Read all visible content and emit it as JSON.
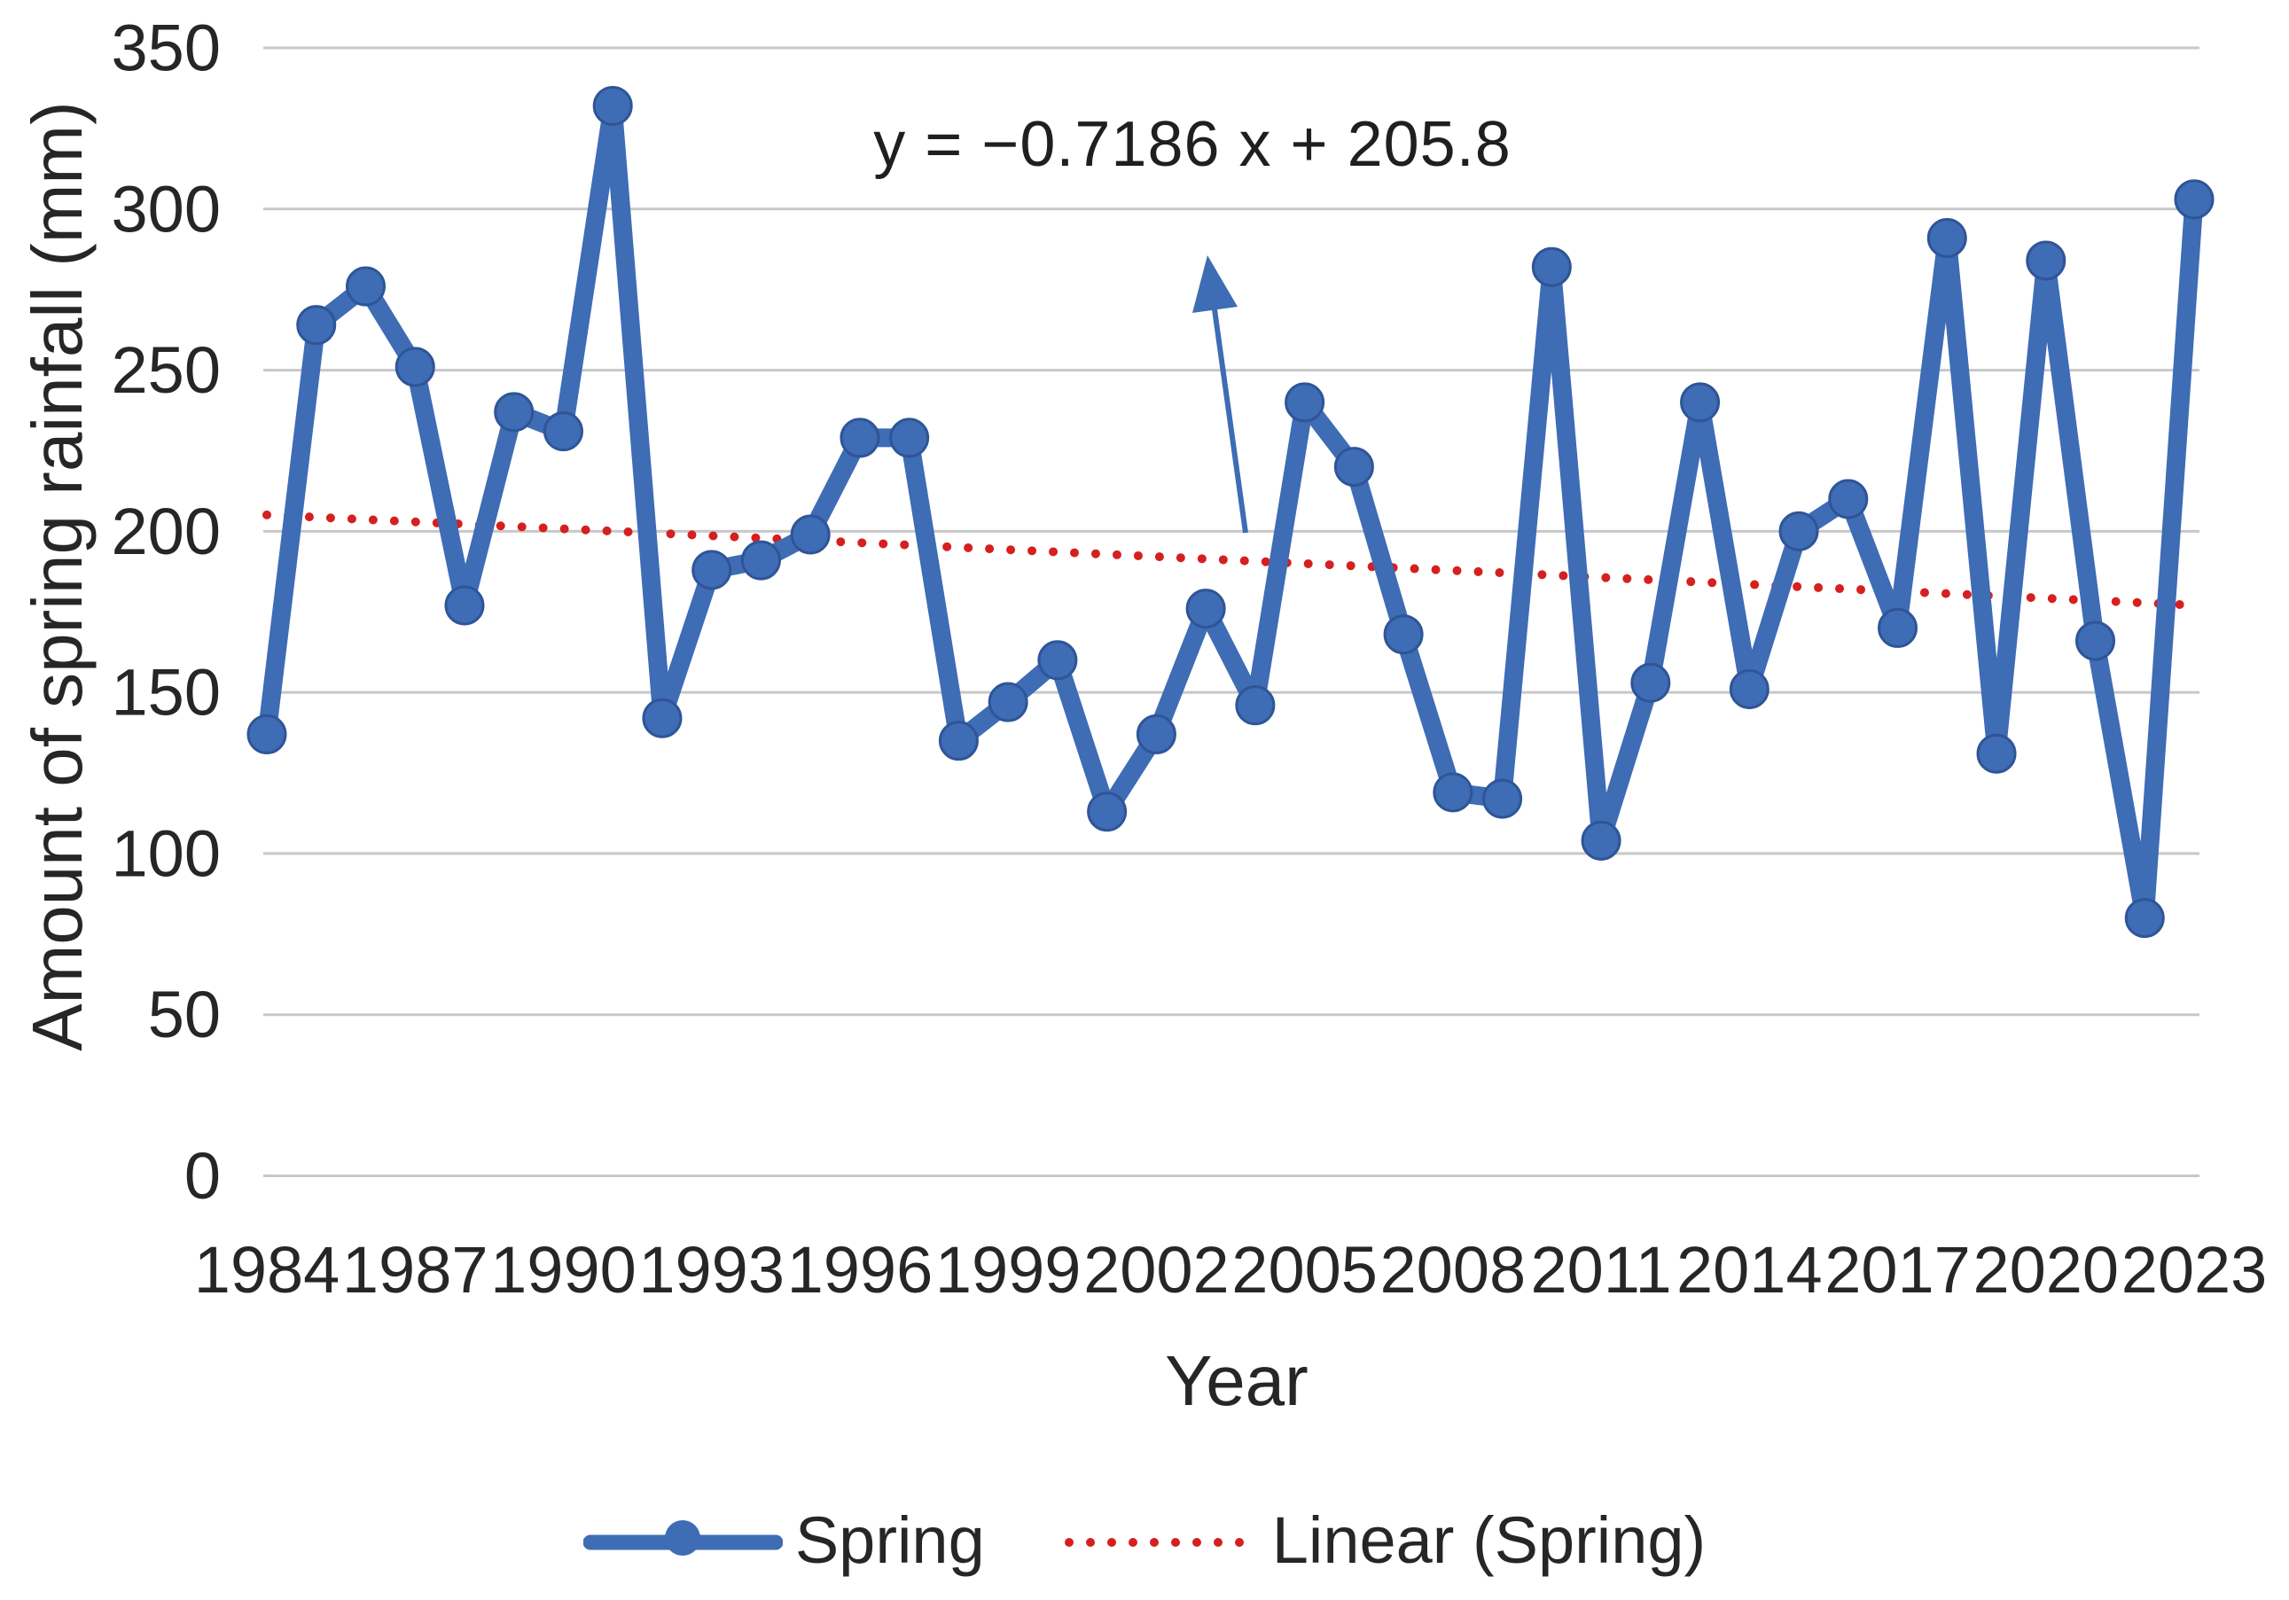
{
  "chart_data": {
    "type": "line",
    "title": "",
    "x": [
      1984,
      1985,
      1986,
      1987,
      1988,
      1989,
      1990,
      1991,
      1992,
      1993,
      1994,
      1995,
      1996,
      1997,
      1998,
      1999,
      2000,
      2001,
      2002,
      2003,
      2004,
      2005,
      2006,
      2007,
      2008,
      2009,
      2010,
      2011,
      2012,
      2013,
      2014,
      2015,
      2016,
      2017,
      2018,
      2019,
      2020,
      2021,
      2022,
      2023
    ],
    "series": [
      {
        "name": "Spring",
        "values": [
          137,
          264,
          276,
          251,
          177,
          237,
          231,
          332,
          142,
          188,
          191,
          199,
          229,
          229,
          135,
          147,
          160,
          113,
          137,
          176,
          146,
          240,
          220,
          168,
          119,
          117,
          282,
          104,
          153,
          240,
          151,
          200,
          210,
          170,
          291,
          131,
          284,
          166,
          80,
          303
        ]
      }
    ],
    "trendline": {
      "name": "Linear (Spring)",
      "equation": "y = −0.7186 x + 205.8",
      "slope": -0.7186,
      "intercept": 205.8,
      "x_index_start": 1
    },
    "xlabel": "Year",
    "ylabel": "Amount of spring rainfall (mm)",
    "ylim": [
      0,
      350
    ],
    "ytick_step": 50,
    "xtick_labels": [
      "1984",
      "1987",
      "1990",
      "1993",
      "1996",
      "1999",
      "2002",
      "2005",
      "2008",
      "2011",
      "2014",
      "2017",
      "2020",
      "2023"
    ],
    "grid": true,
    "legend_position": "bottom",
    "colors": {
      "series": "#3E6CB5",
      "series_edge": "#2F5597",
      "trend": "#D61F1F",
      "gridline": "#C8C8C8",
      "text": "#262626"
    }
  }
}
